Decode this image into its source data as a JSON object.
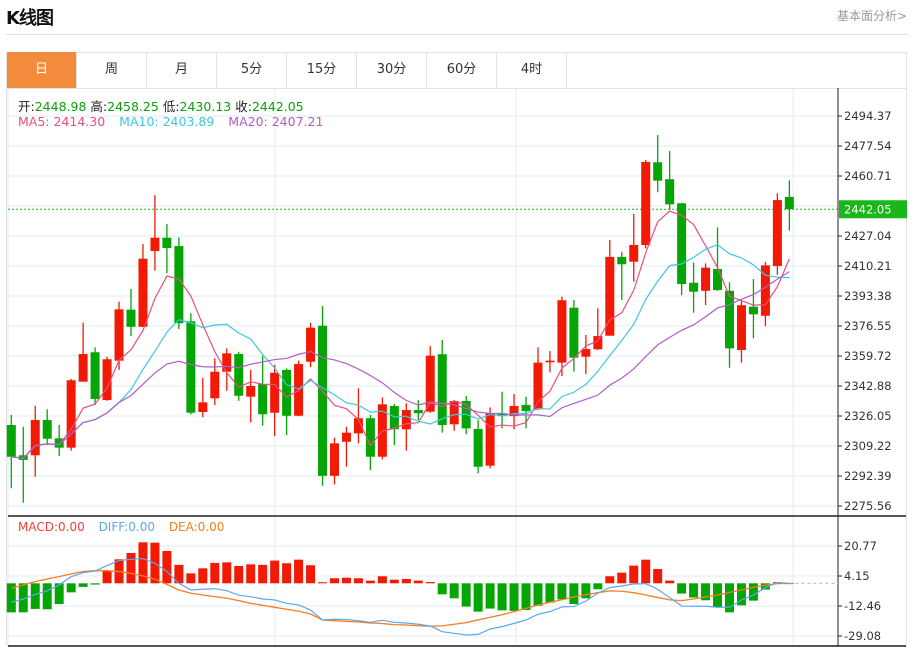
{
  "header": {
    "title": "K线图",
    "link": "基本面分析>"
  },
  "tabs": [
    {
      "label": "日",
      "active": true
    },
    {
      "label": "周"
    },
    {
      "label": "月"
    },
    {
      "label": "5分"
    },
    {
      "label": "15分"
    },
    {
      "label": "30分"
    },
    {
      "label": "60分"
    },
    {
      "label": "4时"
    }
  ],
  "ohlc": {
    "open_label": "开:",
    "open": "2448.98",
    "high_label": "高:",
    "high": "2458.25",
    "low_label": "低:",
    "low": "2430.13",
    "close_label": "收:",
    "close": "2442.05"
  },
  "ma": {
    "ma5_label": "MA5: ",
    "ma5": "2414.30",
    "ma10_label": "MA10: ",
    "ma10": "2403.89",
    "ma20_label": "MA20: ",
    "ma20": "2407.21"
  },
  "macd_legend": {
    "macd": "MACD:0.00",
    "diff": "DIFF:0.00",
    "dea": "DEA:0.00"
  },
  "colors": {
    "up": "#f21a05",
    "down": "#05a505",
    "ma5": "#ea4f80",
    "ma10": "#3ec8de",
    "ma20": "#b25cc6",
    "diff": "#5aa8f0",
    "dea": "#f57d22",
    "macd_label": "#f0413a",
    "accent": "#f28b3c",
    "current_price": "#19b719"
  },
  "chart_data": {
    "type": "candlestick",
    "price_axis_ticks": [
      "2494.37",
      "2477.54",
      "2460.71",
      "2427.04",
      "2410.21",
      "2393.38",
      "2376.55",
      "2359.72",
      "2342.88",
      "2326.05",
      "2309.22",
      "2292.39",
      "2275.56"
    ],
    "current_price": "2442.05",
    "price_range": [
      2275.56,
      2494.37
    ],
    "macd_axis_ticks": [
      "20.77",
      "4.15",
      "-12.46",
      "-29.08"
    ],
    "candles_ohlc": [
      [
        2321.0,
        2326.6,
        2285.5,
        2303.2
      ],
      [
        2304.0,
        2320.0,
        2277.4,
        2301.4
      ],
      [
        2304.0,
        2331.8,
        2292.0,
        2323.8
      ],
      [
        2323.8,
        2329.8,
        2309.8,
        2313.3
      ],
      [
        2313.5,
        2321.0,
        2303.6,
        2308.3
      ],
      [
        2308.3,
        2346.8,
        2306.6,
        2346.1
      ],
      [
        2345.3,
        2378.4,
        2345.3,
        2360.8
      ],
      [
        2361.8,
        2364.6,
        2332.2,
        2335.6
      ],
      [
        2335.0,
        2359.3,
        2334.6,
        2357.9
      ],
      [
        2357.1,
        2390.2,
        2351.9,
        2385.9
      ],
      [
        2385.7,
        2397.3,
        2370.9,
        2376.1
      ],
      [
        2376.1,
        2422.6,
        2376.1,
        2414.3
      ],
      [
        2418.6,
        2450.0,
        2407.6,
        2426.1
      ],
      [
        2426.1,
        2433.8,
        2406.1,
        2420.3
      ],
      [
        2421.4,
        2426.3,
        2374.9,
        2378.1
      ],
      [
        2379.2,
        2383.7,
        2327.0,
        2327.9
      ],
      [
        2328.3,
        2347.5,
        2325.3,
        2333.7
      ],
      [
        2336.0,
        2358.4,
        2332.2,
        2350.9
      ],
      [
        2350.9,
        2364.0,
        2340.2,
        2361.2
      ],
      [
        2360.8,
        2362.1,
        2334.6,
        2337.4
      ],
      [
        2336.9,
        2351.9,
        2322.5,
        2342.9
      ],
      [
        2344.0,
        2359.7,
        2320.6,
        2327.0
      ],
      [
        2327.9,
        2354.7,
        2314.8,
        2350.3
      ],
      [
        2351.9,
        2352.8,
        2315.4,
        2326.2
      ],
      [
        2326.2,
        2357.1,
        2326.0,
        2355.2
      ],
      [
        2356.5,
        2378.4,
        2353.4,
        2375.6
      ],
      [
        2376.7,
        2387.8,
        2286.9,
        2292.5
      ],
      [
        2292.5,
        2313.9,
        2287.7,
        2310.7
      ],
      [
        2311.6,
        2320.0,
        2297.6,
        2316.7
      ],
      [
        2316.3,
        2341.6,
        2310.7,
        2324.8
      ],
      [
        2324.8,
        2326.6,
        2295.7,
        2303.2
      ],
      [
        2303.2,
        2336.5,
        2301.7,
        2332.6
      ],
      [
        2331.7,
        2332.8,
        2309.8,
        2318.6
      ],
      [
        2318.6,
        2333.2,
        2306.6,
        2329.4
      ],
      [
        2329.4,
        2335.0,
        2323.8,
        2327.6
      ],
      [
        2328.5,
        2365.3,
        2327.9,
        2359.9
      ],
      [
        2360.7,
        2368.7,
        2316.7,
        2321.0
      ],
      [
        2321.4,
        2335.0,
        2317.8,
        2334.5
      ],
      [
        2334.5,
        2337.3,
        2315.8,
        2319.1
      ],
      [
        2318.8,
        2323.8,
        2293.9,
        2297.6
      ],
      [
        2298.2,
        2330.9,
        2296.7,
        2327.6
      ],
      [
        2327.6,
        2339.7,
        2319.1,
        2326.0
      ],
      [
        2326.0,
        2338.4,
        2318.6,
        2331.7
      ],
      [
        2332.2,
        2336.9,
        2319.1,
        2328.8
      ],
      [
        2329.8,
        2364.6,
        2329.4,
        2356.0
      ],
      [
        2356.2,
        2362.5,
        2350.6,
        2357.1
      ],
      [
        2356.0,
        2393.0,
        2348.5,
        2391.0
      ],
      [
        2386.8,
        2391.1,
        2350.9,
        2358.8
      ],
      [
        2359.3,
        2371.5,
        2349.6,
        2363.6
      ],
      [
        2363.5,
        2386.5,
        2363.1,
        2370.9
      ],
      [
        2371.1,
        2424.8,
        2371.1,
        2415.3
      ],
      [
        2415.3,
        2418.2,
        2391.1,
        2411.2
      ],
      [
        2412.6,
        2439.4,
        2401.4,
        2422.0
      ],
      [
        2422.0,
        2469.7,
        2420.1,
        2468.6
      ],
      [
        2468.4,
        2483.7,
        2451.6,
        2458.1
      ],
      [
        2458.9,
        2474.7,
        2441.6,
        2444.8
      ],
      [
        2445.4,
        2445.7,
        2393.9,
        2400.1
      ],
      [
        2400.8,
        2412.1,
        2384.0,
        2395.8
      ],
      [
        2396.3,
        2411.7,
        2388.3,
        2409.3
      ],
      [
        2408.5,
        2431.9,
        2396.3,
        2396.7
      ],
      [
        2396.3,
        2401.1,
        2353.1,
        2364.0
      ],
      [
        2363.1,
        2391.1,
        2356.0,
        2388.2
      ],
      [
        2387.4,
        2402.9,
        2369.6,
        2383.1
      ],
      [
        2382.3,
        2412.6,
        2376.5,
        2410.6
      ],
      [
        2410.2,
        2451.0,
        2405.2,
        2447.2
      ],
      [
        2448.98,
        2458.25,
        2430.13,
        2442.05
      ]
    ],
    "macd_hist": [
      -16.1,
      -16.1,
      -14.2,
      -14.4,
      -11.5,
      -5.0,
      -2.0,
      -0.7,
      7.0,
      13.3,
      16.8,
      22.7,
      22.5,
      17.9,
      10.2,
      5.5,
      8.3,
      11.3,
      11.6,
      9.6,
      10.5,
      10.2,
      12.6,
      11.1,
      13.1,
      10.0,
      0.6,
      2.8,
      3.1,
      2.8,
      1.5,
      3.9,
      2.0,
      2.4,
      1.5,
      0.7,
      -6.1,
      -8.3,
      -12.9,
      -15.7,
      -14.0,
      -15.0,
      -15.3,
      -14.8,
      -12.4,
      -10.7,
      -8.9,
      -11.5,
      -8.3,
      -3.3,
      3.9,
      5.9,
      9.8,
      13.1,
      7.9,
      1.5,
      -5.7,
      -7.9,
      -9.4,
      -13.1,
      -16.1,
      -12.2,
      -9.6,
      -3.5,
      0.6,
      0.0
    ],
    "diff": [
      -10.5,
      -8.7,
      -6.1,
      -4.2,
      -0.9,
      3.7,
      5.9,
      6.8,
      9.8,
      12.6,
      13.3,
      13.7,
      11.1,
      6.5,
      0,
      -3.7,
      -3.3,
      -3.0,
      -4.1,
      -6.6,
      -7.4,
      -8.7,
      -9.2,
      -11.1,
      -12.0,
      -14.8,
      -20.3,
      -19.9,
      -20.1,
      -20.7,
      -21.6,
      -20.5,
      -21.6,
      -22.0,
      -22.7,
      -23.6,
      -26.8,
      -27.7,
      -28.6,
      -28.3,
      -25.3,
      -24.0,
      -22.2,
      -20.3,
      -17.2,
      -15.7,
      -13.1,
      -12.9,
      -9.8,
      -5.5,
      -2.4,
      -1.5,
      -0.4,
      -0.2,
      -3.3,
      -7.9,
      -12.6,
      -12.7,
      -12.7,
      -13.3,
      -13.3,
      -9.2,
      -6.5,
      -2.4,
      0.4,
      0.0
    ],
    "dea": [
      -2.8,
      -0.9,
      0.9,
      2.4,
      3.7,
      5.2,
      6.5,
      7.0,
      7.0,
      6.5,
      5.5,
      4.1,
      2.2,
      -0.6,
      -3.7,
      -5.5,
      -6.5,
      -7.4,
      -8.3,
      -9.6,
      -11.1,
      -12.2,
      -13.3,
      -14.4,
      -15.5,
      -17.0,
      -20.3,
      -20.7,
      -21.1,
      -21.4,
      -22.0,
      -22.3,
      -22.9,
      -23.1,
      -23.5,
      -23.8,
      -23.6,
      -22.7,
      -21.8,
      -20.3,
      -18.8,
      -17.4,
      -15.7,
      -13.9,
      -12.0,
      -10.5,
      -9.1,
      -7.6,
      -6.3,
      -5.2,
      -4.2,
      -4.4,
      -5.2,
      -6.5,
      -7.9,
      -9.2,
      -9.6,
      -8.7,
      -7.6,
      -6.5,
      -5.0,
      -3.7,
      -2.2,
      -1.1,
      -0.2,
      0.0
    ]
  }
}
